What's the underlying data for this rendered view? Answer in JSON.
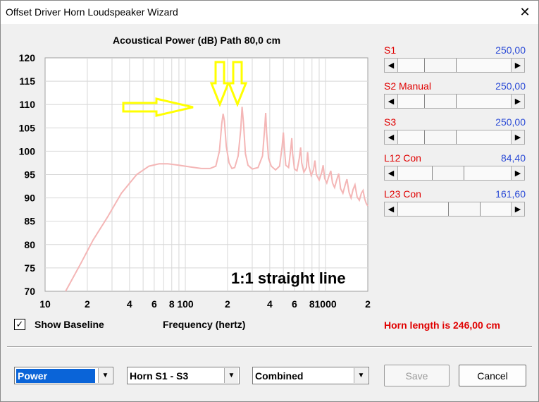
{
  "window": {
    "title": "Offset Driver Horn Loudspeaker Wizard",
    "close_label": "✕"
  },
  "chart_data": {
    "type": "line",
    "title": "Acoustical Power (dB)   Path 80,0 cm",
    "xlabel": "Frequency (hertz)",
    "ylabel": "",
    "xscale": "log",
    "xlim": [
      10,
      2000
    ],
    "ylim": [
      70,
      120
    ],
    "yticks": [
      "120",
      "115",
      "110",
      "105",
      "100",
      "95",
      "90",
      "85",
      "80",
      "75",
      "70"
    ],
    "xticks": [
      {
        "value": 10,
        "label": "10"
      },
      {
        "value": 20,
        "label": "2"
      },
      {
        "value": 40,
        "label": "4"
      },
      {
        "value": 60,
        "label": "6"
      },
      {
        "value": 80,
        "label": "8"
      },
      {
        "value": 100,
        "label": "100"
      },
      {
        "value": 200,
        "label": "2"
      },
      {
        "value": 400,
        "label": "4"
      },
      {
        "value": 600,
        "label": "6"
      },
      {
        "value": 800,
        "label": "8"
      },
      {
        "value": 1000,
        "label": "1000"
      },
      {
        "value": 2000,
        "label": "2"
      }
    ],
    "grid": true,
    "annotation": "1:1 straight line",
    "series": [
      {
        "color": "#f4b6b6",
        "points": [
          [
            14,
            70
          ],
          [
            18,
            76
          ],
          [
            22,
            81
          ],
          [
            28,
            86
          ],
          [
            35,
            91
          ],
          [
            45,
            95
          ],
          [
            55,
            96.8
          ],
          [
            65,
            97.3
          ],
          [
            75,
            97.3
          ],
          [
            90,
            97
          ],
          [
            110,
            96.6
          ],
          [
            130,
            96.3
          ],
          [
            150,
            96.3
          ],
          [
            165,
            96.8
          ],
          [
            175,
            100
          ],
          [
            182,
            106
          ],
          [
            186,
            108
          ],
          [
            190,
            106.5
          ],
          [
            196,
            101
          ],
          [
            205,
            97.5
          ],
          [
            215,
            96.3
          ],
          [
            225,
            96.5
          ],
          [
            238,
            99
          ],
          [
            248,
            104.5
          ],
          [
            254,
            109.5
          ],
          [
            260,
            106
          ],
          [
            268,
            99.5
          ],
          [
            280,
            97
          ],
          [
            300,
            96.2
          ],
          [
            330,
            96.5
          ],
          [
            355,
            99
          ],
          [
            368,
            105
          ],
          [
            374,
            108.2
          ],
          [
            380,
            104
          ],
          [
            392,
            98.5
          ],
          [
            410,
            96.8
          ],
          [
            440,
            96
          ],
          [
            470,
            96.8
          ],
          [
            490,
            101
          ],
          [
            500,
            104
          ],
          [
            507,
            101
          ],
          [
            520,
            97
          ],
          [
            545,
            96.5
          ],
          [
            565,
            100.5
          ],
          [
            574,
            102.8
          ],
          [
            582,
            99.5
          ],
          [
            600,
            96.2
          ],
          [
            625,
            95.8
          ],
          [
            650,
            98.5
          ],
          [
            664,
            100.8
          ],
          [
            676,
            97.5
          ],
          [
            700,
            95.5
          ],
          [
            730,
            96.5
          ],
          [
            745,
            99.8
          ],
          [
            760,
            96.8
          ],
          [
            790,
            94.8
          ],
          [
            820,
            96
          ],
          [
            840,
            98
          ],
          [
            860,
            95
          ],
          [
            900,
            93.8
          ],
          [
            940,
            95.5
          ],
          [
            960,
            97
          ],
          [
            985,
            94.2
          ],
          [
            1020,
            93.2
          ],
          [
            1060,
            94.8
          ],
          [
            1090,
            95.8
          ],
          [
            1120,
            93.2
          ],
          [
            1160,
            92.2
          ],
          [
            1200,
            93.8
          ],
          [
            1240,
            95.2
          ],
          [
            1280,
            92
          ],
          [
            1330,
            91
          ],
          [
            1380,
            92.8
          ],
          [
            1420,
            94
          ],
          [
            1470,
            91.2
          ],
          [
            1520,
            90
          ],
          [
            1570,
            91.8
          ],
          [
            1620,
            92.8
          ],
          [
            1680,
            90.2
          ],
          [
            1740,
            89.5
          ],
          [
            1800,
            91
          ],
          [
            1850,
            91.6
          ],
          [
            1900,
            89.8
          ],
          [
            1950,
            88.8
          ],
          [
            2000,
            88.3
          ]
        ]
      }
    ]
  },
  "arrows_color": "#ffff00",
  "sliders": [
    {
      "label": "S1",
      "value": "250,00",
      "pos": 0.33
    },
    {
      "label": "S2  Manual",
      "value": "250,00",
      "pos": 0.33
    },
    {
      "label": "S3",
      "value": "250,00",
      "pos": 0.33
    },
    {
      "label": "L12  Con",
      "value": "84,40",
      "pos": 0.42
    },
    {
      "label": "L23  Con",
      "value": "161,60",
      "pos": 0.62
    }
  ],
  "show_baseline": {
    "label": "Show Baseline",
    "checked_glyph": "✓"
  },
  "horn_length": "Horn length is 246,00 cm",
  "combos": [
    {
      "value": "Power"
    },
    {
      "value": "Horn S1 - S3"
    },
    {
      "value": "Combined"
    }
  ],
  "buttons": {
    "save": "Save",
    "cancel": "Cancel"
  }
}
